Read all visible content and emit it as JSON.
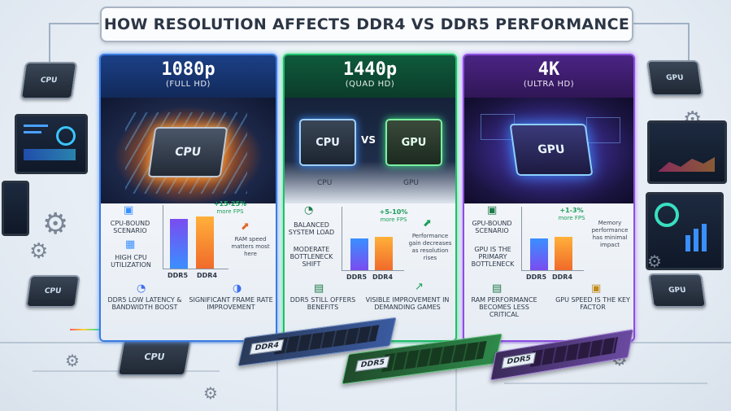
{
  "title": "HOW RESOLUTION AFFECTS DDR4 VS DDR5 PERFORMANCE",
  "panels": [
    {
      "resolution": "1080p",
      "subtitle": "(FULL HD)",
      "chip_label": "CPU",
      "gain": "+15-25%",
      "gain_note": "more FPS",
      "left_label": "CPU-BOUND SCENARIO",
      "left_label2": "HIGH CPU UTILIZATION",
      "right_note": "RAM speed matters most here",
      "bottom_left": "DDR5 LOW LATENCY & BANDWIDTH BOOST",
      "bottom_right": "SIGNIFICANT FRAME RATE IMPROVEMENT",
      "bars": [
        {
          "label": "DDR5",
          "value": 0.78
        },
        {
          "label": "DDR4",
          "value": 0.82
        }
      ]
    },
    {
      "resolution": "1440p",
      "subtitle": "(QUAD HD)",
      "cpu_label": "CPU",
      "vs_label": "VS",
      "gpu_label": "GPU",
      "cpu_caption": "CPU",
      "gpu_caption": "GPU",
      "gain": "+5-10%",
      "gain_note": "more FPS",
      "left_label": "BALANCED SYSTEM LOAD",
      "left_label2": "MODERATE BOTTLENECK SHIFT",
      "right_note": "Performance gain decreases as resolution rises",
      "bottom_left": "DDR5 STILL OFFERS BENEFITS",
      "bottom_right": "VISIBLE IMPROVEMENT IN DEMANDING GAMES",
      "bars": [
        {
          "label": "DDR5",
          "value": 0.5
        },
        {
          "label": "DDR4",
          "value": 0.52
        }
      ]
    },
    {
      "resolution": "4K",
      "subtitle": "(ULTRA HD)",
      "chip_label": "GPU",
      "gain": "+1-3%",
      "gain_note": "more FPS",
      "left_label": "GPU-BOUND SCENARIO",
      "left_label2": "GPU IS THE PRIMARY BOTTLENECK",
      "right_note": "Memory performance has minimal impact",
      "bottom_left": "RAM PERFORMANCE BECOMES LESS CRITICAL",
      "bottom_right": "GPU SPEED IS THE KEY FACTOR",
      "bars": [
        {
          "label": "DDR5",
          "value": 0.5
        },
        {
          "label": "DDR4",
          "value": 0.52
        }
      ]
    }
  ],
  "decor": {
    "chip_left_top": "CPU",
    "chip_left_bottom": "CPU",
    "chip_right_top": "GPU",
    "chip_right_bottom": "GPU",
    "chip_center_bottom": "CPU",
    "ram_left": "DDR4",
    "ram_center": "DDR5",
    "ram_right": "DDR5"
  },
  "colors": {
    "panel1": "#3b7be0",
    "panel2": "#1fbf6a",
    "panel3": "#8e4ee0",
    "bar_ddr5_1080": "#5b6cf0",
    "bar_ddr4_1080": "#f07a2a"
  }
}
